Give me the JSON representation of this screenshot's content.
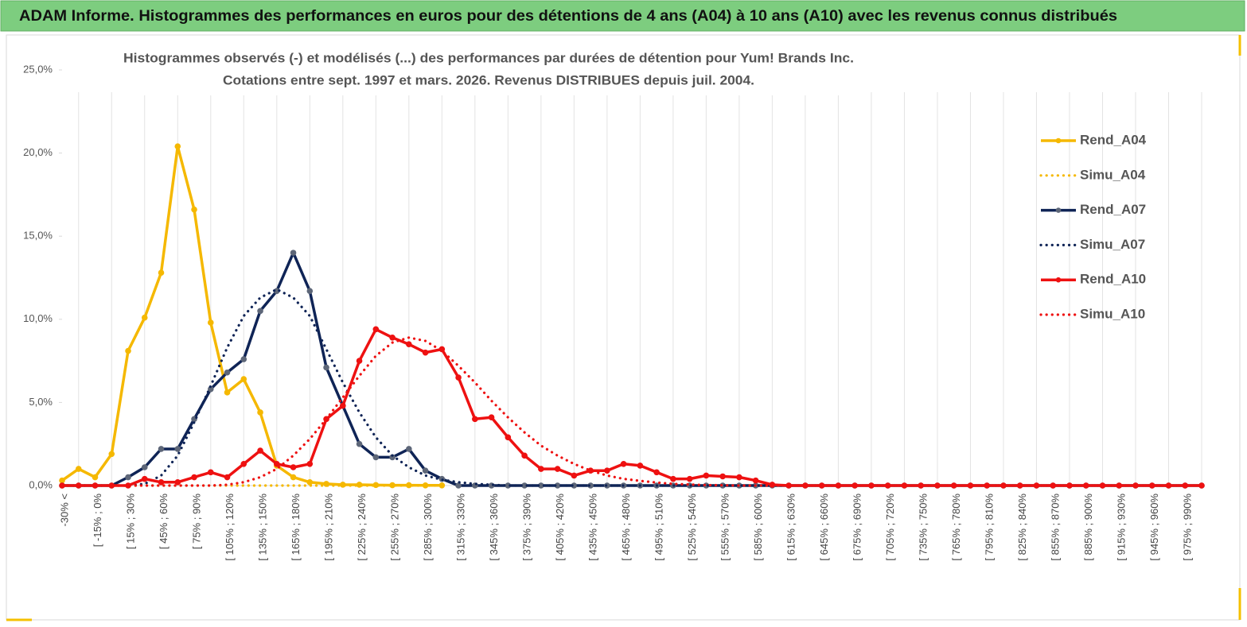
{
  "header": {
    "title": "ADAM Informe. Histogrammes des performances en euros pour des détentions de 4 ans (A04) à 10 ans (A10) avec les revenus connus distribués"
  },
  "chart_data": {
    "type": "line",
    "title": "Histogrammes observés (-) et modélisés (...) des performances par durées de détention pour Yum! Brands Inc.",
    "subtitle": "Cotations entre sept. 1997 et mars. 2026. Revenus DISTRIBUES depuis juil. 2004.",
    "categories": [
      "-30% <",
      null,
      "[ -15% ; 0%",
      null,
      "[ 15% ; 30%",
      null,
      "[ 45% ; 60%",
      null,
      "[ 75% ; 90%",
      null,
      "[ 105% ; 120%",
      null,
      "[ 135% ; 150%",
      null,
      "[ 165% ; 180%",
      null,
      "[ 195% ; 210%",
      null,
      "[ 225% ; 240%",
      null,
      "[ 255% ; 270%",
      null,
      "[ 285% ; 300%",
      null,
      "[ 315% ; 330%",
      null,
      "[ 345% ; 360%",
      null,
      "[ 375% ; 390%",
      null,
      "[ 405% ; 420%",
      null,
      "[ 435% ; 450%",
      null,
      "[ 465% ; 480%",
      null,
      "[ 495% ; 510%",
      null,
      "[ 525% ; 540%",
      null,
      "[ 555% ; 570%",
      null,
      "[ 585% ; 600%",
      null,
      "[ 615% ; 630%",
      null,
      "[ 645% ; 660%",
      null,
      "[ 675% ; 690%",
      null,
      "[ 705% ; 720%",
      null,
      "[ 735% ; 750%",
      null,
      "[ 765% ; 780%",
      null,
      "[ 795% ; 810%",
      null,
      "[ 825% ; 840%",
      null,
      "[ 855% ; 870%",
      null,
      "[ 885% ; 900%",
      null,
      "[ 915% ; 930%",
      null,
      "[ 945% ; 960%",
      null,
      "[ 975% ; 990%",
      null
    ],
    "series": [
      {
        "name": "Rend_A04",
        "color": "#f5b800",
        "style": "solid",
        "markers": "#f5b800",
        "values": [
          0.3,
          1.0,
          0.5,
          1.9,
          8.1,
          10.1,
          12.8,
          20.4,
          16.6,
          9.8,
          5.6,
          6.4,
          4.4,
          1.2,
          0.5,
          0.2,
          0.1,
          0.05,
          0.05,
          0.03,
          0.02,
          0.02,
          0.01,
          0.01,
          null,
          null,
          null,
          null,
          null,
          null,
          null,
          null,
          null,
          null,
          null,
          null,
          null,
          null,
          null,
          null,
          null,
          null,
          null,
          null,
          null,
          null,
          null,
          null,
          null,
          null,
          null,
          null,
          null,
          null,
          null,
          null,
          null,
          null,
          null,
          null,
          null,
          null,
          null,
          null,
          null,
          null,
          null,
          null,
          null,
          null
        ]
      },
      {
        "name": "Simu_A04",
        "color": "#f5b800",
        "style": "dotted",
        "values": [
          0,
          0,
          0,
          0,
          0,
          0,
          0,
          0,
          0,
          0,
          0,
          0,
          0,
          0,
          0,
          0,
          0,
          0,
          0,
          0,
          0,
          0,
          0,
          0,
          null,
          null,
          null,
          null,
          null,
          null,
          null,
          null,
          null,
          null,
          null,
          null,
          null,
          null,
          null,
          null,
          null,
          null,
          null,
          null,
          null,
          null,
          null,
          null,
          null,
          null,
          null,
          null,
          null,
          null,
          null,
          null,
          null,
          null,
          null,
          null,
          null,
          null,
          null,
          null,
          null,
          null,
          null,
          null,
          null,
          null
        ]
      },
      {
        "name": "Rend_A07",
        "color": "#0f2456",
        "style": "solid",
        "markers": "#5d6678",
        "values": [
          0,
          0,
          0,
          0,
          0.5,
          1.1,
          2.2,
          2.2,
          4.0,
          5.8,
          6.8,
          7.6,
          10.5,
          11.7,
          14.0,
          11.7,
          7.1,
          4.8,
          2.5,
          1.7,
          1.7,
          2.2,
          0.9,
          0.4,
          0,
          0,
          0,
          0,
          0,
          0,
          0,
          0,
          0,
          0,
          0,
          0,
          0,
          0,
          0,
          0,
          0,
          0,
          0,
          0,
          0,
          0,
          0,
          0,
          0,
          0,
          0,
          0,
          0,
          0,
          0,
          0,
          0,
          0,
          0,
          0,
          0,
          0,
          0,
          0,
          0,
          0,
          0,
          0,
          0,
          0
        ]
      },
      {
        "name": "Simu_A07",
        "color": "#0f2456",
        "style": "dotted",
        "values": [
          0,
          0,
          0,
          0,
          0,
          0.1,
          0.6,
          1.8,
          3.8,
          6.0,
          8.3,
          10.2,
          11.3,
          11.8,
          11.3,
          10.2,
          8.2,
          6.2,
          4.4,
          2.9,
          1.8,
          1.1,
          0.6,
          0.35,
          0.2,
          0.1,
          0.05,
          0,
          0,
          0,
          0,
          0,
          0,
          0,
          0,
          0,
          0,
          0,
          0,
          0,
          0,
          0,
          0,
          0,
          0,
          0,
          0,
          0,
          0,
          0,
          0,
          0,
          0,
          0,
          0,
          0,
          0,
          0,
          0,
          0,
          0,
          0,
          0,
          0,
          0,
          0,
          0,
          0,
          0,
          0
        ]
      },
      {
        "name": "Rend_A10",
        "color": "#ee1111",
        "style": "solid",
        "markers": "#ee1111",
        "values": [
          0,
          0,
          0,
          0,
          0,
          0.4,
          0.2,
          0.2,
          0.5,
          0.8,
          0.5,
          1.3,
          2.1,
          1.3,
          1.1,
          1.3,
          4.0,
          4.8,
          7.5,
          9.4,
          8.9,
          8.5,
          8.0,
          8.2,
          6.5,
          4.0,
          4.1,
          2.9,
          1.8,
          1.0,
          1.0,
          0.6,
          0.9,
          0.9,
          1.3,
          1.2,
          0.8,
          0.4,
          0.4,
          0.6,
          0.55,
          0.5,
          0.3,
          0.05,
          0,
          0,
          0,
          0,
          0,
          0,
          0,
          0,
          0,
          0,
          0,
          0,
          0,
          0,
          0,
          0,
          0,
          0,
          0,
          0,
          0,
          0,
          0,
          0,
          0,
          0
        ]
      },
      {
        "name": "Simu_A10",
        "color": "#ee1111",
        "style": "dotted",
        "values": [
          0,
          0,
          0,
          0,
          0,
          0,
          0,
          0,
          0,
          0,
          0.05,
          0.2,
          0.5,
          1.0,
          1.8,
          2.8,
          4.0,
          5.3,
          6.6,
          7.8,
          8.6,
          8.9,
          8.7,
          8.1,
          7.2,
          6.2,
          5.1,
          4.1,
          3.2,
          2.4,
          1.8,
          1.3,
          0.9,
          0.6,
          0.4,
          0.28,
          0.18,
          0.1,
          0.06,
          0.03,
          0.02,
          0,
          0,
          0,
          0,
          0,
          0,
          0,
          0,
          0,
          0,
          0,
          0,
          0,
          0,
          0,
          0,
          0,
          0,
          0,
          0,
          0,
          0,
          0,
          0,
          0,
          0,
          0,
          0,
          0
        ]
      }
    ],
    "ylim": [
      0,
      25
    ],
    "yticks": [
      {
        "value": 0,
        "label": "0,0%"
      },
      {
        "value": 5,
        "label": "5,0%"
      },
      {
        "value": 10,
        "label": "10,0%"
      },
      {
        "value": 15,
        "label": "15,0%"
      },
      {
        "value": 20,
        "label": "20,0%"
      },
      {
        "value": 25,
        "label": "25,0%"
      }
    ],
    "grid": "x",
    "legend": "right"
  }
}
